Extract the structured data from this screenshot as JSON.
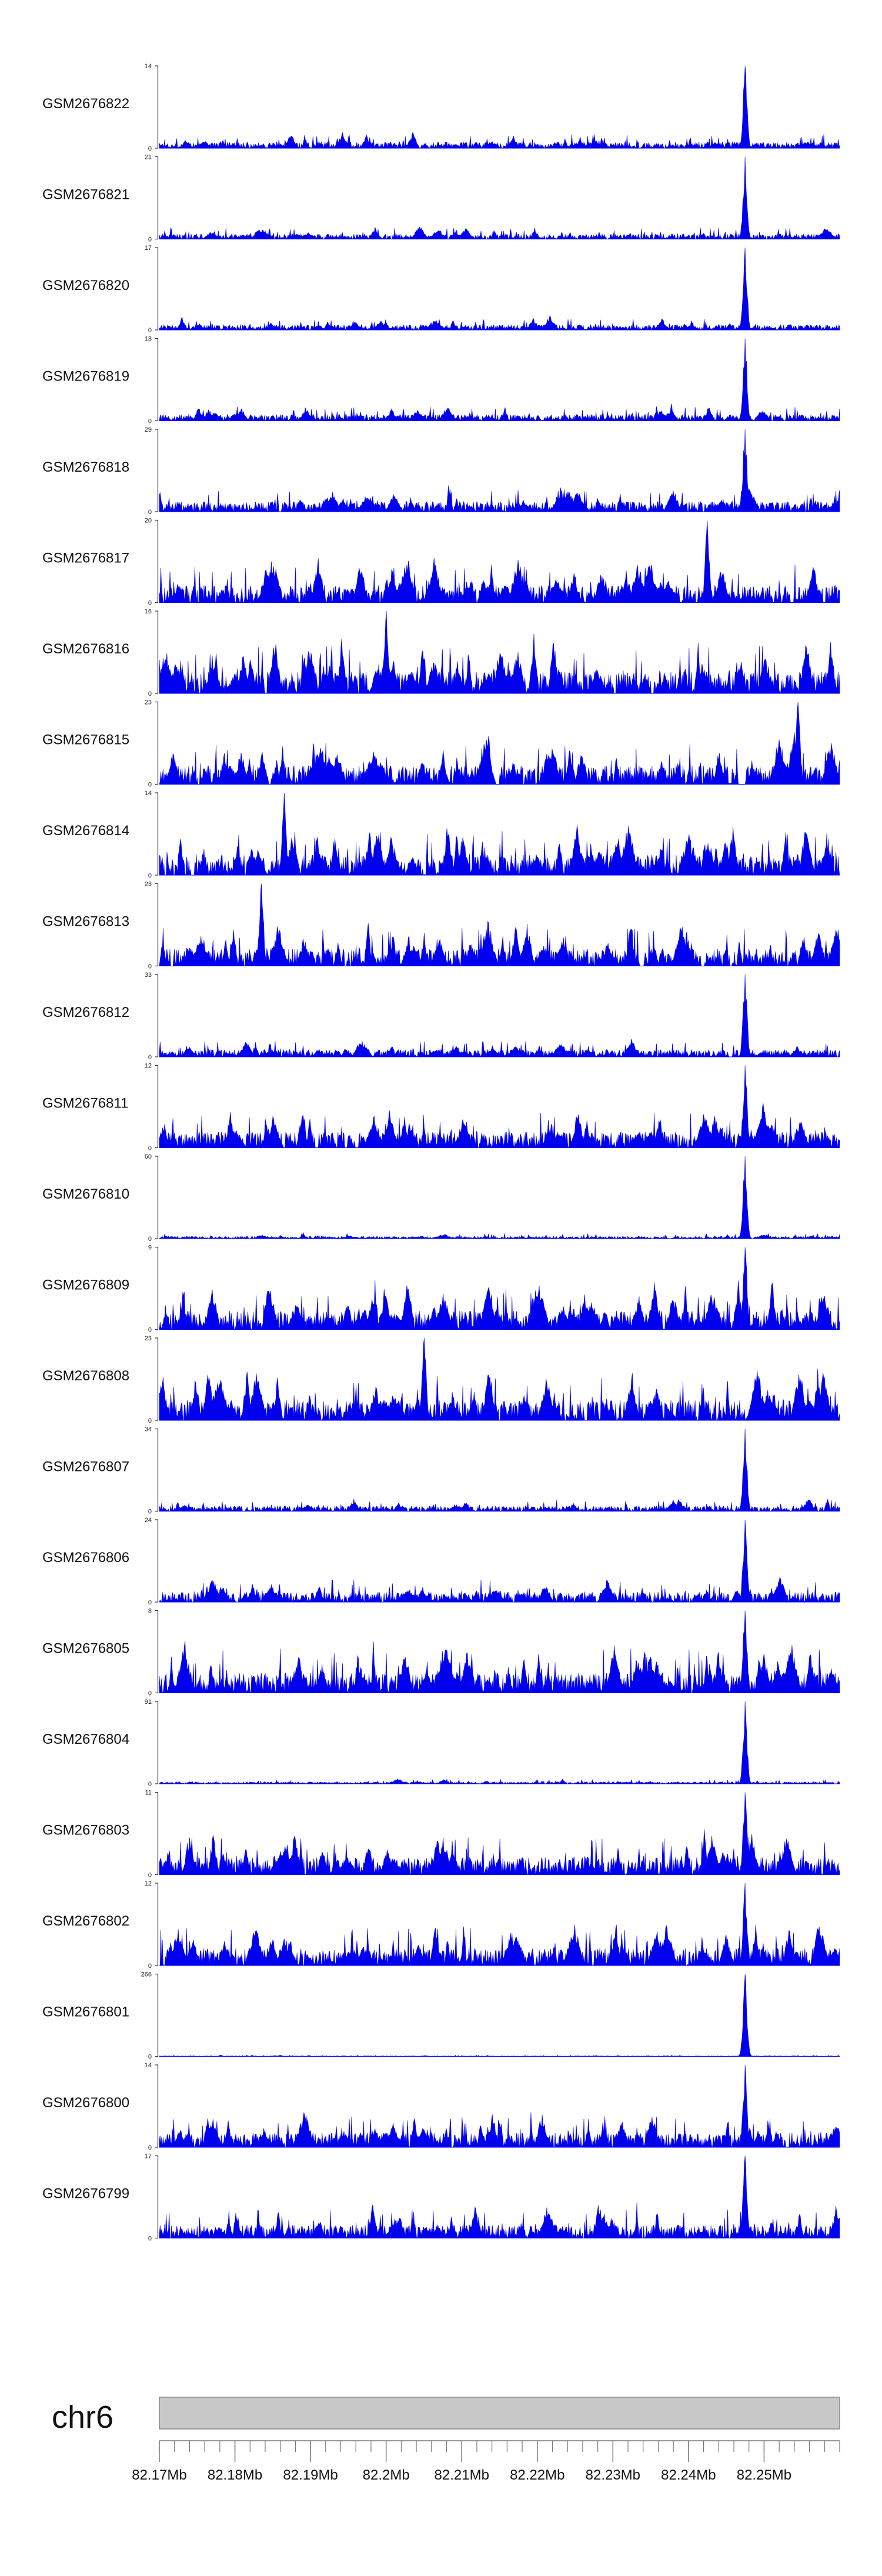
{
  "chart_data": {
    "type": "area",
    "title": "",
    "series_color": "#0000ee",
    "ideogram_color": "#c8c8c8",
    "chromosome": "chr6",
    "x_range_mb": [
      82.17,
      82.26
    ],
    "major_ticks": [
      {
        "value": 82.17,
        "label": "82.17Mb"
      },
      {
        "value": 82.18,
        "label": "82.18Mb"
      },
      {
        "value": 82.19,
        "label": "82.19Mb"
      },
      {
        "value": 82.2,
        "label": "82.2Mb"
      },
      {
        "value": 82.21,
        "label": "82.21Mb"
      },
      {
        "value": 82.22,
        "label": "82.22Mb"
      },
      {
        "value": 82.23,
        "label": "82.23Mb"
      },
      {
        "value": 82.24,
        "label": "82.24Mb"
      },
      {
        "value": 82.25,
        "label": "82.25Mb"
      }
    ],
    "minor_tick_step_mb": 0.002,
    "peak_position_mb": 82.2475,
    "tracks": [
      {
        "name": "GSM2676822",
        "ymin": "0",
        "ymax": "14",
        "max": 14,
        "peak": 14,
        "peak_at": 82.2475,
        "density": 0.85,
        "spike": 0.22
      },
      {
        "name": "GSM2676821",
        "ymin": "0",
        "ymax": "21",
        "max": 21,
        "peak": 21,
        "peak_at": 82.2475,
        "density": 0.75,
        "spike": 0.18
      },
      {
        "name": "GSM2676820",
        "ymin": "0",
        "ymax": "17",
        "max": 17,
        "peak": 17,
        "peak_at": 82.2475,
        "density": 0.9,
        "spike": 0.18
      },
      {
        "name": "GSM2676819",
        "ymin": "0",
        "ymax": "13",
        "max": 13,
        "peak": 13,
        "peak_at": 82.2475,
        "density": 0.88,
        "spike": 0.22
      },
      {
        "name": "GSM2676818",
        "ymin": "0",
        "ymax": "29",
        "max": 29,
        "peak": 29,
        "peak_at": 82.2475,
        "density": 0.6,
        "spike": 0.35
      },
      {
        "name": "GSM2676817",
        "ymin": "0",
        "ymax": "20",
        "max": 20,
        "peak": 20,
        "peak_at": 82.2425,
        "density": 0.5,
        "spike": 0.6
      },
      {
        "name": "GSM2676816",
        "ymin": "0",
        "ymax": "16",
        "max": 16,
        "peak": 16,
        "peak_at": 82.2,
        "density": 0.45,
        "spike": 0.75
      },
      {
        "name": "GSM2676815",
        "ymin": "0",
        "ymax": "23",
        "max": 23,
        "peak": 23,
        "peak_at": 82.2545,
        "density": 0.4,
        "spike": 0.65
      },
      {
        "name": "GSM2676814",
        "ymin": "0",
        "ymax": "14",
        "max": 14,
        "peak": 14,
        "peak_at": 82.1865,
        "density": 0.45,
        "spike": 0.7
      },
      {
        "name": "GSM2676813",
        "ymin": "0",
        "ymax": "23",
        "max": 23,
        "peak": 23,
        "peak_at": 82.1835,
        "density": 0.45,
        "spike": 0.6
      },
      {
        "name": "GSM2676812",
        "ymin": "0",
        "ymax": "33",
        "max": 33,
        "peak": 33,
        "peak_at": 82.2475,
        "density": 0.7,
        "spike": 0.25
      },
      {
        "name": "GSM2676811",
        "ymin": "0",
        "ymax": "12",
        "max": 12,
        "peak": 12,
        "peak_at": 82.2475,
        "density": 0.6,
        "spike": 0.55
      },
      {
        "name": "GSM2676810",
        "ymin": "0",
        "ymax": "60",
        "max": 60,
        "peak": 60,
        "peak_at": 82.2475,
        "density": 0.7,
        "spike": 0.08
      },
      {
        "name": "GSM2676809",
        "ymin": "0",
        "ymax": "9",
        "max": 9,
        "peak": 9,
        "peak_at": 82.2475,
        "density": 0.65,
        "spike": 0.65
      },
      {
        "name": "GSM2676808",
        "ymin": "0",
        "ymax": "23",
        "max": 23,
        "peak": 23,
        "peak_at": 82.205,
        "density": 0.6,
        "spike": 0.7
      },
      {
        "name": "GSM2676807",
        "ymin": "0",
        "ymax": "34",
        "max": 34,
        "peak": 34,
        "peak_at": 82.2475,
        "density": 0.75,
        "spike": 0.18
      },
      {
        "name": "GSM2676806",
        "ymin": "0",
        "ymax": "24",
        "max": 24,
        "peak": 24,
        "peak_at": 82.2475,
        "density": 0.6,
        "spike": 0.35
      },
      {
        "name": "GSM2676805",
        "ymin": "0",
        "ymax": "8",
        "max": 8,
        "peak": 8,
        "peak_at": 82.2475,
        "density": 0.9,
        "spike": 0.7
      },
      {
        "name": "GSM2676804",
        "ymin": "0",
        "ymax": "91",
        "max": 91,
        "peak": 91,
        "peak_at": 82.2475,
        "density": 0.65,
        "spike": 0.07
      },
      {
        "name": "GSM2676803",
        "ymin": "0",
        "ymax": "11",
        "max": 11,
        "peak": 11,
        "peak_at": 82.2475,
        "density": 0.65,
        "spike": 0.6
      },
      {
        "name": "GSM2676802",
        "ymin": "0",
        "ymax": "12",
        "max": 12,
        "peak": 12,
        "peak_at": 82.2475,
        "density": 0.65,
        "spike": 0.6
      },
      {
        "name": "GSM2676801",
        "ymin": "0",
        "ymax": "266",
        "max": 266,
        "peak": 266,
        "peak_at": 82.2475,
        "density": 0.8,
        "spike": 0.02
      },
      {
        "name": "GSM2676800",
        "ymin": "0",
        "ymax": "14",
        "max": 14,
        "peak": 14,
        "peak_at": 82.2475,
        "density": 0.65,
        "spike": 0.5
      },
      {
        "name": "GSM2676799",
        "ymin": "0",
        "ymax": "17",
        "max": 17,
        "peak": 17,
        "peak_at": 82.2475,
        "density": 0.65,
        "spike": 0.45
      }
    ]
  }
}
